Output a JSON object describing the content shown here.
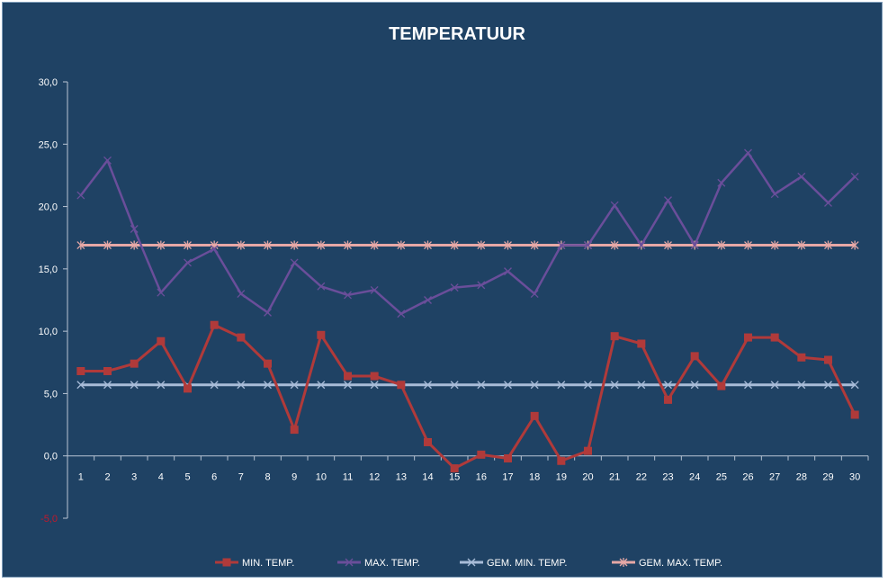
{
  "chart_data": {
    "type": "line",
    "title": "TEMPERATUUR",
    "xlabel": "",
    "ylabel": "",
    "categories": [
      "1",
      "2",
      "3",
      "4",
      "5",
      "6",
      "7",
      "8",
      "9",
      "10",
      "11",
      "12",
      "13",
      "14",
      "15",
      "16",
      "17",
      "18",
      "19",
      "20",
      "21",
      "22",
      "23",
      "24",
      "25",
      "26",
      "27",
      "28",
      "29",
      "30"
    ],
    "ylim": [
      -5,
      30
    ],
    "yticks": [
      "30,0",
      "25,0",
      "20,0",
      "15,0",
      "10,0",
      "5,0",
      "0,0",
      "-5,0"
    ],
    "ytick_values": [
      30,
      25,
      20,
      15,
      10,
      5,
      0,
      -5
    ],
    "grid": false,
    "legend_position": "bottom",
    "series": [
      {
        "name": "MIN. TEMP.",
        "color": "#b03a3a",
        "marker": "square",
        "values": [
          6.8,
          6.8,
          7.4,
          9.2,
          5.4,
          10.5,
          9.5,
          7.4,
          2.1,
          9.7,
          6.4,
          6.4,
          5.7,
          1.1,
          -1.0,
          0.1,
          -0.2,
          3.2,
          -0.4,
          0.4,
          9.6,
          9.0,
          4.5,
          8.0,
          5.6,
          9.5,
          9.5,
          7.9,
          7.7,
          3.3
        ]
      },
      {
        "name": "MAX. TEMP.",
        "color": "#6a4e9a",
        "marker": "x",
        "values": [
          20.9,
          23.7,
          18.2,
          13.1,
          15.5,
          16.6,
          13.0,
          11.5,
          15.5,
          13.6,
          12.9,
          13.3,
          11.4,
          12.5,
          13.5,
          13.7,
          14.8,
          13.0,
          16.9,
          16.9,
          20.1,
          16.9,
          20.5,
          16.9,
          21.9,
          24.3,
          21.0,
          22.4,
          20.3,
          22.4
        ]
      },
      {
        "name": "GEM. MIN. TEMP.",
        "color": "#a8bcd8",
        "marker": "x",
        "values": [
          5.7,
          5.7,
          5.7,
          5.7,
          5.7,
          5.7,
          5.7,
          5.7,
          5.7,
          5.7,
          5.7,
          5.7,
          5.7,
          5.7,
          5.7,
          5.7,
          5.7,
          5.7,
          5.7,
          5.7,
          5.7,
          5.7,
          5.7,
          5.7,
          5.7,
          5.7,
          5.7,
          5.7,
          5.7,
          5.7
        ]
      },
      {
        "name": "GEM. MAX. TEMP.",
        "color": "#e6a8a6",
        "marker": "star",
        "values": [
          16.9,
          16.9,
          16.9,
          16.9,
          16.9,
          16.9,
          16.9,
          16.9,
          16.9,
          16.9,
          16.9,
          16.9,
          16.9,
          16.9,
          16.9,
          16.9,
          16.9,
          16.9,
          16.9,
          16.9,
          16.9,
          16.9,
          16.9,
          16.9,
          16.9,
          16.9,
          16.9,
          16.9,
          16.9,
          16.9
        ]
      }
    ],
    "colors": {
      "background": "#1f4264",
      "axis": "#b8c4d4",
      "text": "#ffffff",
      "negative_tick": "#c0182c"
    }
  }
}
